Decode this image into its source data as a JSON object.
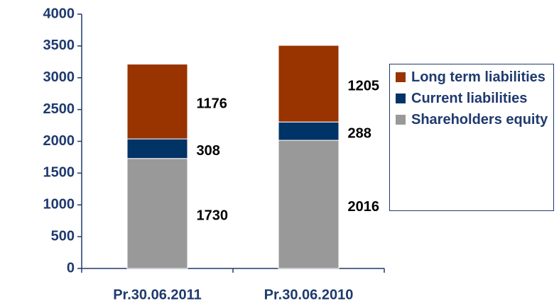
{
  "chart_data": {
    "type": "stacked_bar",
    "categories": [
      "Pr.30.06.2011",
      "Pr.30.06.2010"
    ],
    "series": [
      {
        "name": "Shareholders equity",
        "color": "#999999",
        "values": [
          1730,
          2016
        ]
      },
      {
        "name": "Current liabilities",
        "color": "#003366",
        "values": [
          308,
          288
        ]
      },
      {
        "name": "Long term liabilities",
        "color": "#993300",
        "values": [
          1176,
          1205
        ]
      }
    ],
    "ylim": [
      0,
      4000
    ],
    "yticks": [
      0,
      500,
      1000,
      1500,
      2000,
      2500,
      3000,
      3500,
      4000
    ],
    "legend": "right"
  }
}
